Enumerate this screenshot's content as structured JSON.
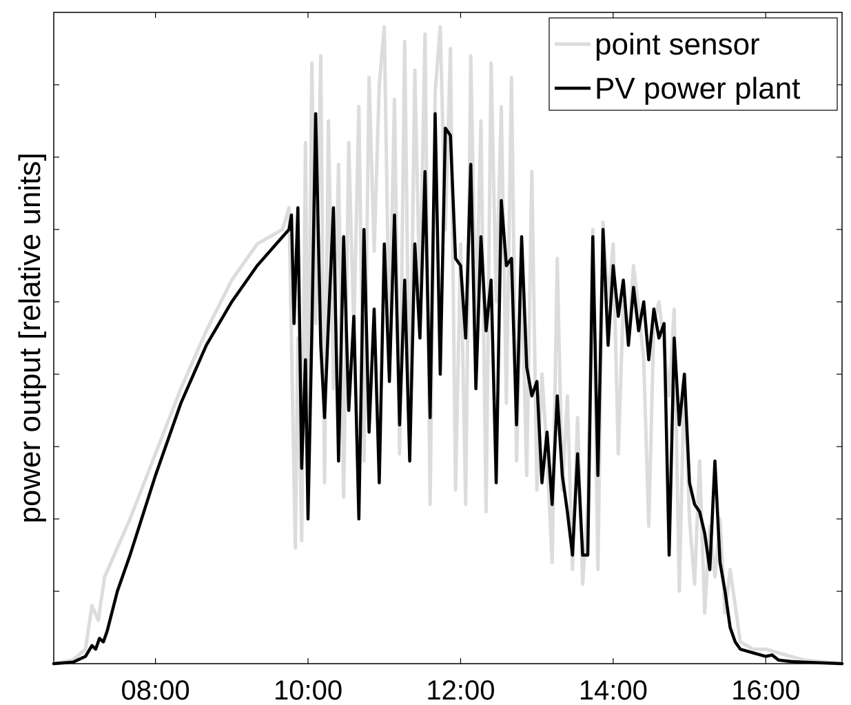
{
  "chart_data": {
    "type": "line",
    "title": "",
    "xlabel": "",
    "ylabel": "power output [relative units]",
    "xlim": [
      "06:40",
      "17:00"
    ],
    "ylim": [
      0,
      9
    ],
    "x_ticks": [
      "08:00",
      "10:00",
      "12:00",
      "14:00",
      "16:00"
    ],
    "y_ticks": [
      1,
      2,
      3,
      4,
      5,
      6,
      7,
      8
    ],
    "y_tick_labels_shown": false,
    "grid": false,
    "legend": {
      "position": "top-right",
      "entries": [
        "point sensor",
        "PV power plant"
      ]
    },
    "series": [
      {
        "name": "point sensor",
        "color": "#dcdcdc",
        "x": [
          "06:55",
          "07:05",
          "07:10",
          "07:15",
          "07:20",
          "07:30",
          "07:40",
          "08:00",
          "08:20",
          "08:40",
          "09:00",
          "09:20",
          "09:40",
          "09:45",
          "09:50",
          "09:52",
          "09:55",
          "09:58",
          "10:00",
          "10:03",
          "10:06",
          "10:10",
          "10:13",
          "10:16",
          "10:20",
          "10:24",
          "10:28",
          "10:32",
          "10:36",
          "10:40",
          "10:44",
          "10:48",
          "10:52",
          "10:56",
          "11:00",
          "11:04",
          "11:08",
          "11:12",
          "11:16",
          "11:20",
          "11:24",
          "11:28",
          "11:32",
          "11:36",
          "11:40",
          "11:44",
          "11:48",
          "11:52",
          "11:56",
          "12:00",
          "12:04",
          "12:08",
          "12:12",
          "12:16",
          "12:20",
          "12:24",
          "12:28",
          "12:32",
          "12:36",
          "12:40",
          "12:44",
          "12:48",
          "12:52",
          "12:56",
          "13:00",
          "13:04",
          "13:08",
          "13:12",
          "13:16",
          "13:20",
          "13:24",
          "13:28",
          "13:32",
          "13:36",
          "13:40",
          "13:44",
          "13:48",
          "13:52",
          "13:56",
          "14:00",
          "14:04",
          "14:08",
          "14:12",
          "14:16",
          "14:20",
          "14:24",
          "14:28",
          "14:32",
          "14:36",
          "14:40",
          "14:44",
          "14:48",
          "14:52",
          "14:56",
          "15:00",
          "15:04",
          "15:08",
          "15:12",
          "15:16",
          "15:20",
          "15:24",
          "15:28",
          "15:32",
          "15:36",
          "15:40",
          "15:50",
          "16:00",
          "16:10",
          "16:20",
          "16:30"
        ],
        "y": [
          0.05,
          0.2,
          0.8,
          0.6,
          1.2,
          1.6,
          2.0,
          2.9,
          3.8,
          4.6,
          5.3,
          5.8,
          6.0,
          6.3,
          1.6,
          4.5,
          1.7,
          7.2,
          3.0,
          8.3,
          4.7,
          8.4,
          2.5,
          7.5,
          3.8,
          6.9,
          2.3,
          7.2,
          4.6,
          7.7,
          2.8,
          8.1,
          5.7,
          8.0,
          8.8,
          4.4,
          7.8,
          2.9,
          8.6,
          3.1,
          8.2,
          5.0,
          8.7,
          2.2,
          7.9,
          8.8,
          6.0,
          8.5,
          2.4,
          5.8,
          2.2,
          8.4,
          4.6,
          7.5,
          2.1,
          8.3,
          5.0,
          7.7,
          3.6,
          8.1,
          2.8,
          5.4,
          2.6,
          6.8,
          2.4,
          4.0,
          2.9,
          1.4,
          5.6,
          2.4,
          3.7,
          1.3,
          3.4,
          1.1,
          2.2,
          6.0,
          1.3,
          6.1,
          5.0,
          5.8,
          2.9,
          5.0,
          4.5,
          5.5,
          4.9,
          4.2,
          1.9,
          4.7,
          5.0,
          4.4,
          3.7,
          4.9,
          1.0,
          4.0,
          2.0,
          1.1,
          2.8,
          0.7,
          1.9,
          1.2,
          2.0,
          0.7,
          1.3,
          0.8,
          0.3,
          0.2,
          0.2,
          0.15,
          0.1,
          0.05
        ]
      },
      {
        "name": "PV power plant",
        "color": "#000000",
        "x": [
          "06:55",
          "07:05",
          "07:10",
          "07:13",
          "07:16",
          "07:19",
          "07:22",
          "07:30",
          "07:40",
          "08:00",
          "08:20",
          "08:40",
          "09:00",
          "09:20",
          "09:35",
          "09:45",
          "09:47",
          "09:49",
          "09:52",
          "09:55",
          "09:58",
          "10:00",
          "10:03",
          "10:06",
          "10:10",
          "10:13",
          "10:16",
          "10:20",
          "10:24",
          "10:28",
          "10:32",
          "10:36",
          "10:40",
          "10:44",
          "10:48",
          "10:52",
          "10:56",
          "11:00",
          "11:04",
          "11:08",
          "11:12",
          "11:16",
          "11:20",
          "11:24",
          "11:28",
          "11:32",
          "11:36",
          "11:40",
          "11:44",
          "11:48",
          "11:52",
          "11:56",
          "12:00",
          "12:04",
          "12:08",
          "12:12",
          "12:16",
          "12:20",
          "12:24",
          "12:28",
          "12:32",
          "12:36",
          "12:40",
          "12:44",
          "12:48",
          "12:52",
          "12:56",
          "13:00",
          "13:04",
          "13:08",
          "13:12",
          "13:16",
          "13:20",
          "13:24",
          "13:28",
          "13:32",
          "13:36",
          "13:40",
          "13:44",
          "13:48",
          "13:52",
          "13:56",
          "14:00",
          "14:04",
          "14:08",
          "14:12",
          "14:16",
          "14:20",
          "14:24",
          "14:28",
          "14:32",
          "14:36",
          "14:40",
          "14:44",
          "14:48",
          "14:52",
          "14:56",
          "15:00",
          "15:04",
          "15:08",
          "15:12",
          "15:16",
          "15:20",
          "15:24",
          "15:28",
          "15:32",
          "15:36",
          "15:40",
          "15:50",
          "16:00",
          "16:05",
          "16:10",
          "16:20",
          "16:30"
        ],
        "y": [
          0.02,
          0.1,
          0.25,
          0.2,
          0.35,
          0.3,
          0.45,
          1.0,
          1.5,
          2.6,
          3.6,
          4.4,
          5.0,
          5.5,
          5.8,
          6.0,
          6.2,
          4.7,
          6.3,
          2.7,
          4.2,
          2.0,
          4.6,
          7.6,
          4.4,
          3.4,
          4.7,
          6.3,
          2.8,
          5.9,
          3.5,
          4.8,
          2.0,
          6.0,
          3.2,
          4.9,
          2.5,
          5.8,
          3.9,
          6.2,
          3.3,
          5.3,
          2.8,
          5.8,
          4.5,
          6.8,
          3.4,
          7.6,
          4.0,
          7.4,
          7.3,
          5.6,
          5.5,
          4.5,
          6.9,
          3.8,
          5.9,
          4.6,
          5.3,
          2.5,
          6.4,
          5.5,
          5.6,
          3.3,
          5.9,
          4.1,
          3.7,
          3.9,
          2.5,
          3.2,
          2.2,
          3.7,
          2.6,
          2.1,
          1.5,
          2.9,
          1.5,
          1.5,
          5.9,
          2.6,
          6.0,
          4.4,
          5.5,
          4.8,
          5.3,
          4.4,
          5.2,
          4.6,
          5.0,
          4.2,
          4.9,
          4.5,
          4.7,
          1.5,
          4.5,
          3.3,
          4.0,
          2.5,
          2.2,
          2.1,
          1.8,
          1.3,
          2.8,
          1.4,
          1.0,
          0.5,
          0.3,
          0.2,
          0.15,
          0.1,
          0.12,
          0.05,
          0.03,
          0.02
        ]
      }
    ]
  }
}
